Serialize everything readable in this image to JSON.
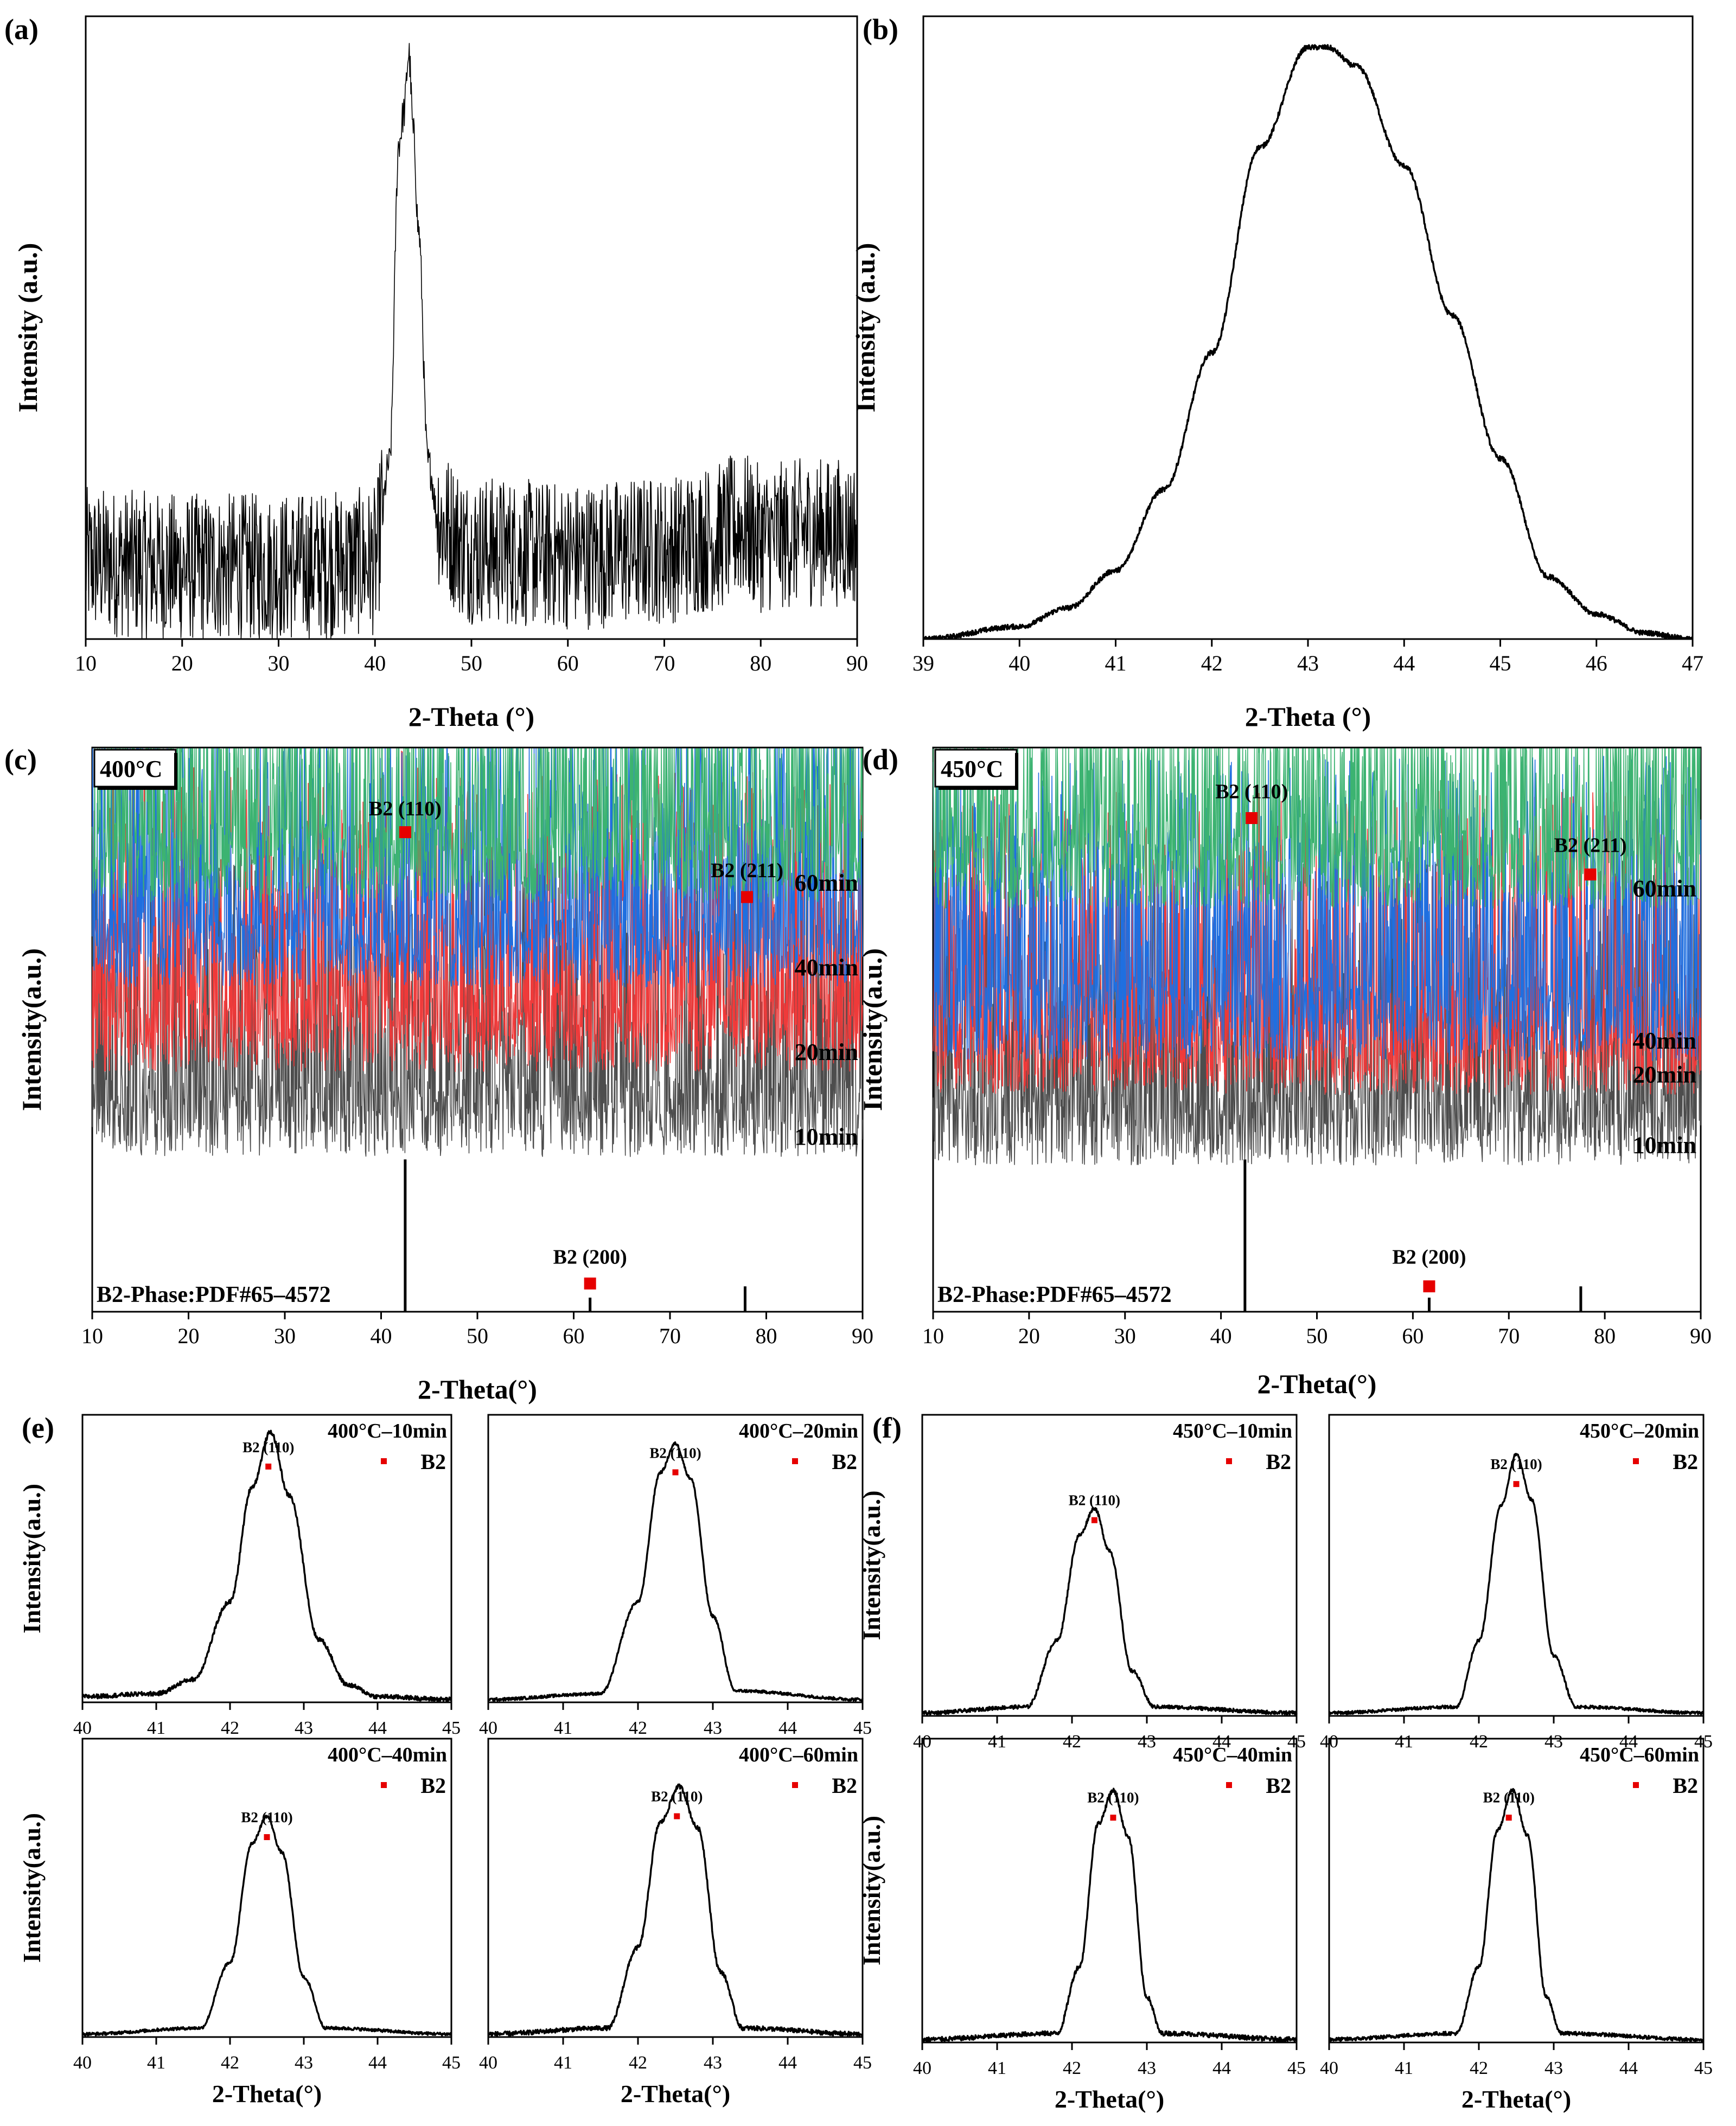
{
  "colors": {
    "black": "#000000",
    "green": "#3cb371",
    "blue": "#1f6fe0",
    "red": "#ef3a3a",
    "gray": "#4d4d4d",
    "marker": "#e60000"
  },
  "chart_data": [
    {
      "id": "a",
      "panel_label": "(a)",
      "type": "line",
      "xlabel": "2-Theta (°)",
      "ylabel": "Intensity (a.u.)",
      "xlim": [
        10,
        90
      ],
      "xticks": [
        10,
        20,
        30,
        40,
        50,
        60,
        70,
        80,
        90
      ],
      "ylim": [
        0,
        100
      ],
      "grid": false,
      "series": [
        {
          "color": "#000000",
          "noise": 0.12,
          "x": [
            10,
            20,
            30,
            40,
            41.5,
            42.5,
            43.0,
            43.5,
            44.0,
            44.5,
            45.5,
            47,
            50,
            60,
            70,
            75,
            78,
            80,
            85,
            90
          ],
          "y": [
            9,
            8,
            8,
            9,
            30,
            85,
            90,
            100,
            86,
            70,
            30,
            15,
            11,
            10,
            11,
            13,
            15,
            13,
            14,
            14
          ]
        }
      ]
    },
    {
      "id": "b",
      "panel_label": "(b)",
      "type": "line",
      "xlabel": "2-Theta (°)",
      "ylabel": "Intensity (a.u.)",
      "xlim": [
        39,
        47
      ],
      "xticks": [
        39,
        40,
        41,
        42,
        43,
        44,
        45,
        46,
        47
      ],
      "ylim": [
        0,
        100
      ],
      "grid": false,
      "series": [
        {
          "color": "#000000",
          "noise": 0.008,
          "x": [
            39,
            40,
            40.5,
            41,
            41.5,
            42,
            42.5,
            43,
            43.2,
            43.5,
            44,
            44.5,
            45,
            45.5,
            46,
            46.5,
            47
          ],
          "y": [
            0,
            2,
            5,
            11,
            24,
            46,
            79,
            95,
            95,
            92,
            76,
            52,
            29,
            10,
            4,
            1,
            0
          ]
        }
      ]
    },
    {
      "id": "c",
      "panel_label": "(c)",
      "type": "line",
      "xlabel": "2-Theta(°)",
      "ylabel": "Intensity(a.u.)",
      "xlim": [
        10,
        90
      ],
      "xticks": [
        10,
        20,
        30,
        40,
        50,
        60,
        70,
        80,
        90
      ],
      "ylim": [
        0,
        100
      ],
      "grid": false,
      "legend_box": "400°C",
      "reference_label": "B2-Phase:PDF#65–4572",
      "reference_lines": [
        {
          "x": 42.5,
          "y0": 0,
          "y1": 27
        },
        {
          "x": 61.7,
          "y0": 0,
          "y1": 2.5
        },
        {
          "x": 77.8,
          "y0": 0,
          "y1": 4.5
        }
      ],
      "series": [
        {
          "name": "10min",
          "color": "#4d4d4d",
          "offset": 27.5,
          "noise": 0.5,
          "x": [
            10,
            41.8,
            42.3,
            42.8,
            77.3,
            77.8,
            78.3,
            90
          ],
          "y": [
            0,
            0,
            7.5,
            0,
            0,
            1.2,
            0,
            0
          ]
        },
        {
          "name": "20min",
          "color": "#ef3a3a",
          "offset": 42.5,
          "noise": 0.5,
          "x": [
            10,
            41.9,
            42.5,
            43.1,
            77.2,
            77.8,
            78.4,
            90
          ],
          "y": [
            0,
            0,
            21,
            0,
            0,
            2.2,
            0,
            0
          ]
        },
        {
          "name": "40min",
          "color": "#1f6fe0",
          "offset": 57.5,
          "noise": 0.5,
          "x": [
            10,
            41.9,
            42.4,
            42.9,
            77.3,
            77.8,
            78.3,
            90
          ],
          "y": [
            0,
            0,
            8,
            0,
            0,
            1.2,
            0,
            0
          ]
        },
        {
          "name": "60min",
          "color": "#3cb371",
          "offset": 72.5,
          "noise": 0.5,
          "x": [
            10,
            41.9,
            42.5,
            43.1,
            77.2,
            77.8,
            78.4,
            90
          ],
          "y": [
            0,
            0,
            11,
            0,
            0,
            1.5,
            0,
            0
          ]
        }
      ],
      "annotations": [
        {
          "text": "B2 (110)",
          "x": 42.5,
          "y": 88,
          "marker_y": 85
        },
        {
          "text": "B2 (211)",
          "x": 78,
          "y": 77,
          "marker_y": 73.5
        },
        {
          "text": "B2 (200)",
          "x": 61.7,
          "y": 8.5,
          "marker_y": 5
        }
      ]
    },
    {
      "id": "d",
      "panel_label": "(d)",
      "type": "line",
      "xlabel": "2-Theta(°)",
      "ylabel": "Intensity(a.u.)",
      "xlim": [
        10,
        90
      ],
      "xticks": [
        10,
        20,
        30,
        40,
        50,
        60,
        70,
        80,
        90
      ],
      "ylim": [
        0,
        100
      ],
      "grid": false,
      "legend_box": "450°C",
      "reference_label": "B2-Phase:PDF#65–4572",
      "reference_lines": [
        {
          "x": 42.5,
          "y0": 0,
          "y1": 27
        },
        {
          "x": 61.7,
          "y0": 0,
          "y1": 2.5
        },
        {
          "x": 77.5,
          "y0": 0,
          "y1": 4.5
        }
      ],
      "series": [
        {
          "name": "10min",
          "color": "#4d4d4d",
          "offset": 26,
          "noise": 0.5,
          "x": [
            10,
            41.7,
            42.2,
            42.7,
            76.9,
            77.5,
            78.1,
            90
          ],
          "y": [
            0,
            0,
            8,
            0,
            0,
            1.2,
            0,
            0
          ]
        },
        {
          "name": "20min",
          "color": "#ef3a3a",
          "offset": 38.5,
          "noise": 0.5,
          "x": [
            10,
            41.9,
            42.4,
            42.9,
            77.0,
            77.6,
            78.2,
            90
          ],
          "y": [
            0,
            0,
            7,
            0,
            0,
            1.3,
            0,
            0
          ]
        },
        {
          "name": "40min",
          "color": "#1f6fe0",
          "offset": 44.5,
          "noise": 0.5,
          "x": [
            10,
            42.0,
            42.5,
            43.0,
            77.0,
            77.6,
            78.2,
            90
          ],
          "y": [
            0,
            0,
            24,
            0,
            0,
            3.3,
            0,
            0
          ]
        },
        {
          "name": "60min",
          "color": "#3cb371",
          "offset": 71.5,
          "noise": 0.5,
          "x": [
            10,
            42.0,
            42.5,
            43.0,
            77.0,
            77.6,
            78.2,
            90
          ],
          "y": [
            0,
            0,
            11,
            0,
            0,
            2.3,
            0,
            0
          ]
        }
      ],
      "annotations": [
        {
          "text": "B2 (110)",
          "x": 43.2,
          "y": 91,
          "marker_y": 87.5
        },
        {
          "text": "B2 (211)",
          "x": 78.5,
          "y": 81.5,
          "marker_y": 77.5
        },
        {
          "text": "B2 (200)",
          "x": 61.7,
          "y": 8.5,
          "marker_y": 4.5
        }
      ]
    },
    {
      "id": "e1",
      "panel_label": "(e)",
      "type": "line",
      "xlabel": "",
      "ylabel": "Intensity(a.u.)",
      "xlim": [
        40,
        45
      ],
      "xticks": [
        40,
        41,
        42,
        43,
        44,
        45
      ],
      "ylim": [
        0,
        100
      ],
      "grid": false,
      "subtitle": "400°C–10min",
      "legend": "B2",
      "legend_pos": "top-right",
      "series": [
        {
          "color": "#000000",
          "noise": 0.015,
          "x": [
            40,
            41,
            41.5,
            42,
            42.3,
            42.55,
            42.8,
            43.2,
            43.6,
            44,
            45
          ],
          "y": [
            2,
            3,
            8,
            35,
            75,
            94,
            72,
            22,
            6,
            2,
            1
          ]
        }
      ],
      "annotations": [
        {
          "text": "B2 (110)",
          "x": 42.52,
          "y": 87,
          "marker_y": 82
        }
      ]
    },
    {
      "id": "e2",
      "type": "line",
      "xlabel": "",
      "ylabel": "",
      "xlim": [
        40,
        45
      ],
      "xticks": [
        40,
        41,
        42,
        43,
        44,
        45
      ],
      "ylim": [
        0,
        100
      ],
      "grid": false,
      "subtitle": "400°C–20min",
      "legend": "B2",
      "legend_pos": "top-right",
      "series": [
        {
          "color": "#000000",
          "noise": 0.01,
          "x": [
            40,
            41.5,
            42,
            42.3,
            42.5,
            42.7,
            43,
            43.3,
            45
          ],
          "y": [
            1,
            3,
            35,
            80,
            90,
            78,
            30,
            4,
            1
          ]
        }
      ],
      "annotations": [
        {
          "text": "B2 (110)",
          "x": 42.5,
          "y": 85,
          "marker_y": 80
        }
      ]
    },
    {
      "id": "e3",
      "type": "line",
      "xlabel": "2-Theta(°)",
      "ylabel": "Intensity(a.u.)",
      "xlim": [
        40,
        45
      ],
      "xticks": [
        40,
        41,
        42,
        43,
        44,
        45
      ],
      "ylim": [
        0,
        100
      ],
      "grid": false,
      "subtitle": "400°C–40min",
      "legend": "B2",
      "legend_pos": "top-right",
      "series": [
        {
          "color": "#000000",
          "noise": 0.01,
          "x": [
            40,
            41.6,
            42,
            42.3,
            42.5,
            42.7,
            43,
            43.3,
            45
          ],
          "y": [
            1,
            3,
            25,
            65,
            74,
            62,
            20,
            3,
            1
          ]
        }
      ],
      "annotations": [
        {
          "text": "B2 (110)",
          "x": 42.5,
          "y": 72,
          "marker_y": 67
        }
      ]
    },
    {
      "id": "e4",
      "type": "line",
      "xlabel": "2-Theta(°)",
      "ylabel": "",
      "xlim": [
        40,
        45
      ],
      "xticks": [
        40,
        41,
        42,
        43,
        44,
        45
      ],
      "ylim": [
        0,
        100
      ],
      "grid": false,
      "subtitle": "400°C–60min",
      "legend": "B2",
      "legend_pos": "top-right",
      "series": [
        {
          "color": "#000000",
          "noise": 0.015,
          "x": [
            40,
            41.6,
            42,
            42.3,
            42.55,
            42.8,
            43.1,
            43.4,
            45
          ],
          "y": [
            1,
            3,
            30,
            72,
            84,
            70,
            22,
            3,
            1
          ]
        }
      ],
      "annotations": [
        {
          "text": "B2 (110)",
          "x": 42.52,
          "y": 79,
          "marker_y": 74
        }
      ]
    },
    {
      "id": "f1",
      "panel_label": "(f)",
      "type": "line",
      "xlabel": "",
      "ylabel": "Intensity(a.u.)",
      "xlim": [
        40,
        45
      ],
      "xticks": [
        40,
        41,
        42,
        43,
        44,
        45
      ],
      "ylim": [
        0,
        100
      ],
      "grid": false,
      "subtitle": "450°C–10min",
      "legend": "B2",
      "legend_pos": "top-right",
      "series": [
        {
          "color": "#000000",
          "noise": 0.012,
          "x": [
            40,
            41.4,
            41.8,
            42.1,
            42.3,
            42.5,
            42.8,
            43.1,
            45
          ],
          "y": [
            1,
            3,
            25,
            60,
            69,
            55,
            15,
            3,
            1
          ]
        }
      ],
      "annotations": [
        {
          "text": "B2 (110)",
          "x": 42.3,
          "y": 70,
          "marker_y": 65
        }
      ]
    },
    {
      "id": "f2",
      "type": "line",
      "xlabel": "",
      "ylabel": "",
      "xlim": [
        40,
        45
      ],
      "xticks": [
        40,
        41,
        42,
        43,
        44,
        45
      ],
      "ylim": [
        0,
        100
      ],
      "grid": false,
      "subtitle": "450°C–20min",
      "legend": "B2",
      "legend_pos": "top-right",
      "series": [
        {
          "color": "#000000",
          "noise": 0.01,
          "x": [
            40,
            41.7,
            42,
            42.3,
            42.5,
            42.7,
            43,
            43.3,
            45
          ],
          "y": [
            1,
            3,
            25,
            70,
            87,
            72,
            20,
            3,
            1
          ]
        }
      ],
      "annotations": [
        {
          "text": "B2 (110)",
          "x": 42.5,
          "y": 82,
          "marker_y": 77
        }
      ]
    },
    {
      "id": "f3",
      "type": "line",
      "xlabel": "2-Theta(°)",
      "ylabel": "Intensity(a.u.)",
      "xlim": [
        40,
        45
      ],
      "xticks": [
        40,
        41,
        42,
        43,
        44,
        45
      ],
      "ylim": [
        0,
        100
      ],
      "grid": false,
      "subtitle": "450°C–40min",
      "legend": "B2",
      "legend_pos": "top-right",
      "series": [
        {
          "color": "#000000",
          "noise": 0.015,
          "x": [
            40,
            41.8,
            42.1,
            42.35,
            42.55,
            42.75,
            43,
            43.2,
            45
          ],
          "y": [
            1,
            3,
            25,
            72,
            83,
            68,
            15,
            3,
            1
          ]
        }
      ],
      "annotations": [
        {
          "text": "B2 (110)",
          "x": 42.55,
          "y": 79,
          "marker_y": 74
        }
      ]
    },
    {
      "id": "f4",
      "type": "line",
      "xlabel": "2-Theta(°)",
      "ylabel": "",
      "xlim": [
        40,
        45
      ],
      "xticks": [
        40,
        41,
        42,
        43,
        44,
        45
      ],
      "ylim": [
        0,
        100
      ],
      "grid": false,
      "subtitle": "450°C–60min",
      "legend": "B2",
      "legend_pos": "top-right",
      "series": [
        {
          "color": "#000000",
          "noise": 0.012,
          "x": [
            40,
            41.7,
            42.0,
            42.25,
            42.45,
            42.65,
            42.9,
            43.1,
            45
          ],
          "y": [
            1,
            3,
            25,
            70,
            83,
            68,
            15,
            3,
            1
          ]
        }
      ],
      "annotations": [
        {
          "text": "B2 (110)",
          "x": 42.4,
          "y": 79,
          "marker_y": 74
        }
      ]
    }
  ]
}
